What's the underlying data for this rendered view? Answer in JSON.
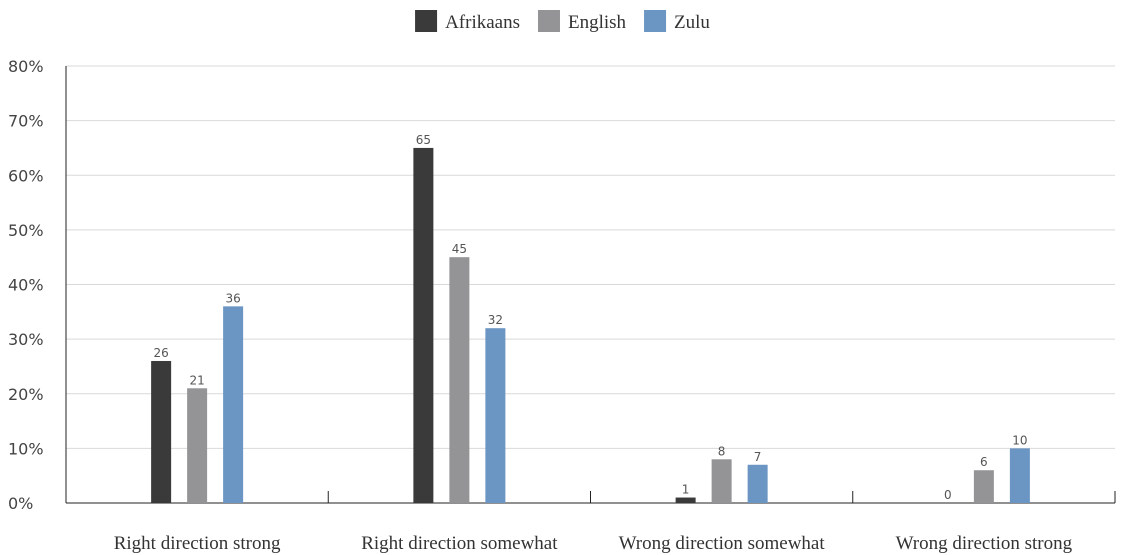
{
  "chart_data": {
    "type": "bar",
    "categories": [
      "Right direction strong",
      "Right direction somewhat",
      "Wrong direction somewhat",
      "Wrong direction strong"
    ],
    "series": [
      {
        "name": "Afrikaans",
        "values": [
          26,
          65,
          1,
          0
        ],
        "color": "#3a3a3a"
      },
      {
        "name": "English",
        "values": [
          21,
          45,
          8,
          6
        ],
        "color": "#949497"
      },
      {
        "name": "Zulu",
        "values": [
          36,
          32,
          7,
          10
        ],
        "color": "#6b95c2"
      }
    ],
    "title": "",
    "xlabel": "",
    "ylabel": "",
    "ylim": [
      0,
      80
    ],
    "y_ticks": [
      "0%",
      "10%",
      "20%",
      "30%",
      "40%",
      "50%",
      "60%",
      "70%",
      "80%"
    ],
    "grid": true,
    "legend_position": "top-center"
  }
}
